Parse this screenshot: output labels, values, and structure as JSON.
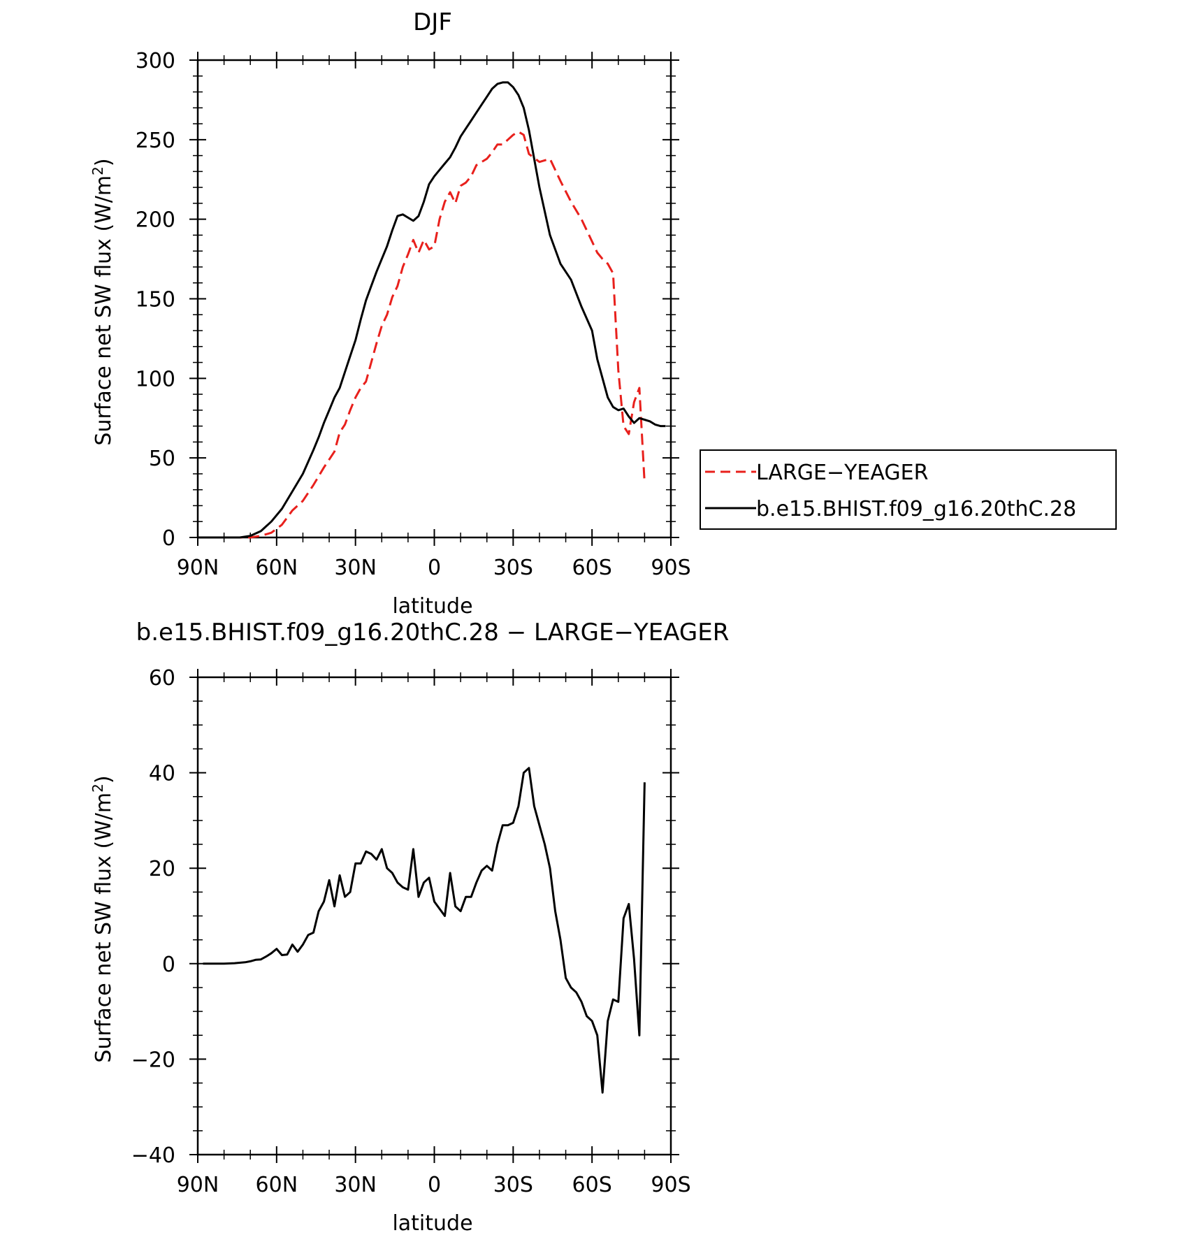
{
  "chart_data": [
    {
      "type": "line",
      "title": "DJF",
      "xlabel": "latitude",
      "ylabel": "Surface net SW flux (W/m",
      "ylabel_sup": "2",
      "ylabel_close": ")",
      "xlim": [
        90,
        -90
      ],
      "ylim": [
        0,
        300
      ],
      "xticks": [
        90,
        60,
        30,
        0,
        -30,
        -60,
        -90
      ],
      "xtick_labels": [
        "90N",
        "60N",
        "30N",
        "0",
        "30S",
        "60S",
        "90S"
      ],
      "yticks": [
        0,
        50,
        100,
        150,
        200,
        250,
        300
      ],
      "ytick_labels": [
        "0",
        "50",
        "100",
        "150",
        "200",
        "250",
        "300"
      ],
      "legend": {
        "placement": "right",
        "entries": [
          "LARGE−YEAGER",
          "b.e15.BHIST.f09_g16.20thC.28"
        ]
      },
      "series": [
        {
          "name": "LARGE−YEAGER",
          "color": "#e8201c",
          "dash": true,
          "x": [
            90,
            86,
            82,
            78,
            74,
            70,
            66,
            62,
            58,
            54,
            50,
            46,
            42,
            40,
            38,
            36,
            34,
            32,
            30,
            28,
            26,
            24,
            22,
            20,
            18,
            16,
            14,
            12,
            10,
            8,
            6,
            4,
            2,
            0,
            -2,
            -4,
            -6,
            -8,
            -10,
            -12,
            -14,
            -16,
            -18,
            -20,
            -22,
            -24,
            -26,
            -28,
            -30,
            -32,
            -34,
            -36,
            -40,
            -44,
            -48,
            -52,
            -56,
            -60,
            -62,
            -64,
            -66,
            -68,
            -70,
            -72,
            -74,
            -76,
            -78,
            -80
          ],
          "y": [
            0,
            0,
            0,
            0,
            0,
            0,
            1,
            3,
            8,
            17,
            23,
            33,
            44,
            49,
            54,
            66,
            71,
            80,
            88,
            94,
            98,
            110,
            122,
            133,
            140,
            151,
            158,
            170,
            178,
            187,
            179,
            187,
            181,
            183,
            200,
            211,
            217,
            210,
            221,
            223,
            227,
            234,
            236,
            238,
            242,
            247,
            247,
            250,
            253,
            255,
            253,
            241,
            236,
            238,
            224,
            211,
            200,
            186,
            179,
            175,
            172,
            166,
            105,
            70,
            65,
            85,
            94,
            34
          ]
        },
        {
          "name": "b.e15.BHIST.f09_g16.20thC.28",
          "color": "#000000",
          "dash": false,
          "x": [
            90,
            86,
            82,
            78,
            74,
            70,
            66,
            62,
            58,
            54,
            50,
            46,
            44,
            42,
            40,
            38,
            36,
            34,
            32,
            30,
            28,
            26,
            24,
            22,
            20,
            18,
            16,
            14,
            12,
            10,
            8,
            6,
            4,
            2,
            0,
            -2,
            -4,
            -6,
            -8,
            -10,
            -12,
            -14,
            -16,
            -18,
            -20,
            -22,
            -24,
            -26,
            -28,
            -30,
            -32,
            -34,
            -36,
            -40,
            -44,
            -48,
            -52,
            -56,
            -60,
            -62,
            -64,
            -66,
            -68,
            -70,
            -72,
            -74,
            -76,
            -78,
            -80,
            -82,
            -84,
            -86,
            -88
          ],
          "y": [
            0,
            0,
            0,
            0,
            0,
            1,
            4,
            10,
            18,
            29,
            40,
            55,
            63,
            72,
            80,
            88,
            94,
            104,
            114,
            124,
            137,
            149,
            158,
            167,
            175,
            183,
            193,
            202,
            203,
            201,
            199,
            202,
            211,
            222,
            227,
            231,
            235,
            239,
            245,
            252,
            257,
            262,
            267,
            272,
            277,
            282,
            285,
            286,
            286,
            283,
            278,
            270,
            256,
            220,
            190,
            172,
            162,
            145,
            130,
            112,
            100,
            88,
            82,
            80,
            81,
            76,
            72,
            75,
            74,
            73,
            71,
            70,
            70
          ]
        }
      ]
    },
    {
      "type": "line",
      "title": "b.e15.BHIST.f09_g16.20thC.28 − LARGE−YEAGER",
      "xlabel": "latitude",
      "ylabel": "Surface net SW flux (W/m",
      "ylabel_sup": "2",
      "ylabel_close": ")",
      "xlim": [
        90,
        -90
      ],
      "ylim": [
        -40,
        60
      ],
      "xticks": [
        90,
        60,
        30,
        0,
        -30,
        -60,
        -90
      ],
      "xtick_labels": [
        "90N",
        "60N",
        "30N",
        "0",
        "30S",
        "60S",
        "90S"
      ],
      "yticks": [
        -40,
        -20,
        0,
        20,
        40,
        60
      ],
      "ytick_labels": [
        "−40",
        "−20",
        "0",
        "20",
        "40",
        "60"
      ],
      "series": [
        {
          "color": "#000000",
          "dash": false,
          "x": [
            88,
            80,
            76,
            72,
            70,
            68,
            66,
            64,
            62,
            60,
            58,
            56,
            54,
            52,
            50,
            48,
            46,
            44,
            42,
            40,
            38,
            36,
            34,
            32,
            30,
            28,
            26,
            24,
            22,
            20,
            18,
            16,
            14,
            12,
            10,
            8,
            6,
            4,
            2,
            0,
            -2,
            -4,
            -6,
            -8,
            -10,
            -12,
            -14,
            -16,
            -18,
            -20,
            -22,
            -24,
            -26,
            -28,
            -30,
            -32,
            -34,
            -36,
            -38,
            -40,
            -42,
            -44,
            -46,
            -48,
            -50,
            -52,
            -54,
            -56,
            -58,
            -60,
            -62,
            -64,
            -66,
            -68,
            -70,
            -72,
            -74,
            -76,
            -78,
            -80
          ],
          "y": [
            0,
            0,
            0.1,
            0.3,
            0.5,
            0.8,
            0.9,
            1.5,
            2.2,
            3.1,
            1.8,
            1.9,
            4,
            2.5,
            4,
            6,
            6.5,
            11,
            13,
            17.5,
            12,
            18.5,
            14,
            15,
            21,
            21,
            23.5,
            23,
            21.8,
            24,
            20,
            19,
            17,
            16,
            15.5,
            24,
            14,
            17,
            18,
            13,
            11.5,
            10,
            19,
            12,
            11,
            14,
            14,
            17,
            19.5,
            20.5,
            19.5,
            25,
            29,
            29,
            29.5,
            33,
            40,
            41,
            33,
            29,
            25,
            20,
            11,
            5,
            -3,
            -5,
            -6,
            -8,
            -11,
            -12,
            -15,
            -27,
            -12,
            -7.5,
            -8,
            9.5,
            12.5,
            1,
            -15,
            38
          ]
        }
      ]
    }
  ]
}
